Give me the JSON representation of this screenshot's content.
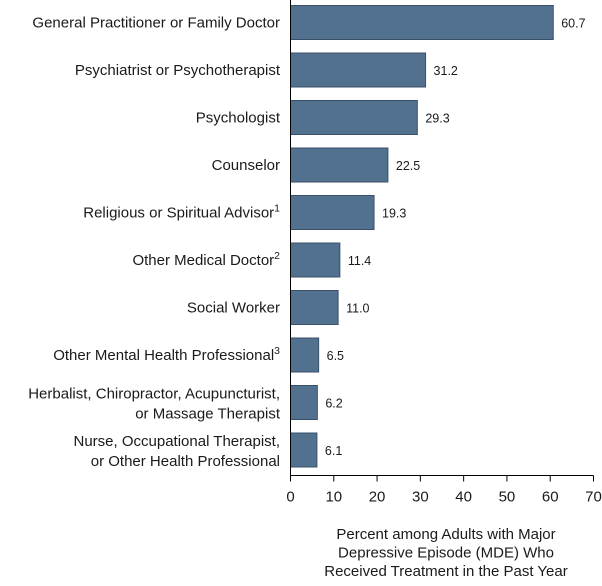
{
  "chart_data": {
    "type": "bar",
    "orientation": "horizontal",
    "categories": [
      {
        "lines": [
          "General Practitioner or Family Doctor"
        ],
        "sup": ""
      },
      {
        "lines": [
          "Psychiatrist or Psychotherapist"
        ],
        "sup": ""
      },
      {
        "lines": [
          "Psychologist"
        ],
        "sup": ""
      },
      {
        "lines": [
          "Counselor"
        ],
        "sup": ""
      },
      {
        "lines": [
          "Religious or Spiritual Advisor"
        ],
        "sup": "1"
      },
      {
        "lines": [
          "Other Medical Doctor"
        ],
        "sup": "2"
      },
      {
        "lines": [
          "Social Worker"
        ],
        "sup": ""
      },
      {
        "lines": [
          "Other Mental Health Professional"
        ],
        "sup": "3"
      },
      {
        "lines": [
          "Herbalist, Chiropractor, Acupuncturist,",
          "or Massage Therapist"
        ],
        "sup": ""
      },
      {
        "lines": [
          "Nurse, Occupational Therapist,",
          "or Other Health Professional"
        ],
        "sup": ""
      }
    ],
    "values": [
      60.7,
      31.2,
      29.3,
      22.5,
      19.3,
      11.4,
      11.0,
      6.5,
      6.2,
      6.1
    ],
    "value_labels": [
      "60.7",
      "31.2",
      "29.3",
      "22.5",
      "19.3",
      "11.4",
      "11.0",
      "6.5",
      "6.2",
      "6.1"
    ],
    "xlim": [
      0,
      70
    ],
    "xticks": [
      0,
      10,
      20,
      30,
      40,
      50,
      60,
      70
    ],
    "xlabel_lines": [
      "Percent among Adults with Major",
      "Depressive Episode (MDE) Who",
      "Received Treatment in the Past Year"
    ],
    "ylabel": "",
    "title": "",
    "bar_color": "#52718f",
    "bar_stroke": "#3a5068",
    "grid": false,
    "legend": "none"
  }
}
